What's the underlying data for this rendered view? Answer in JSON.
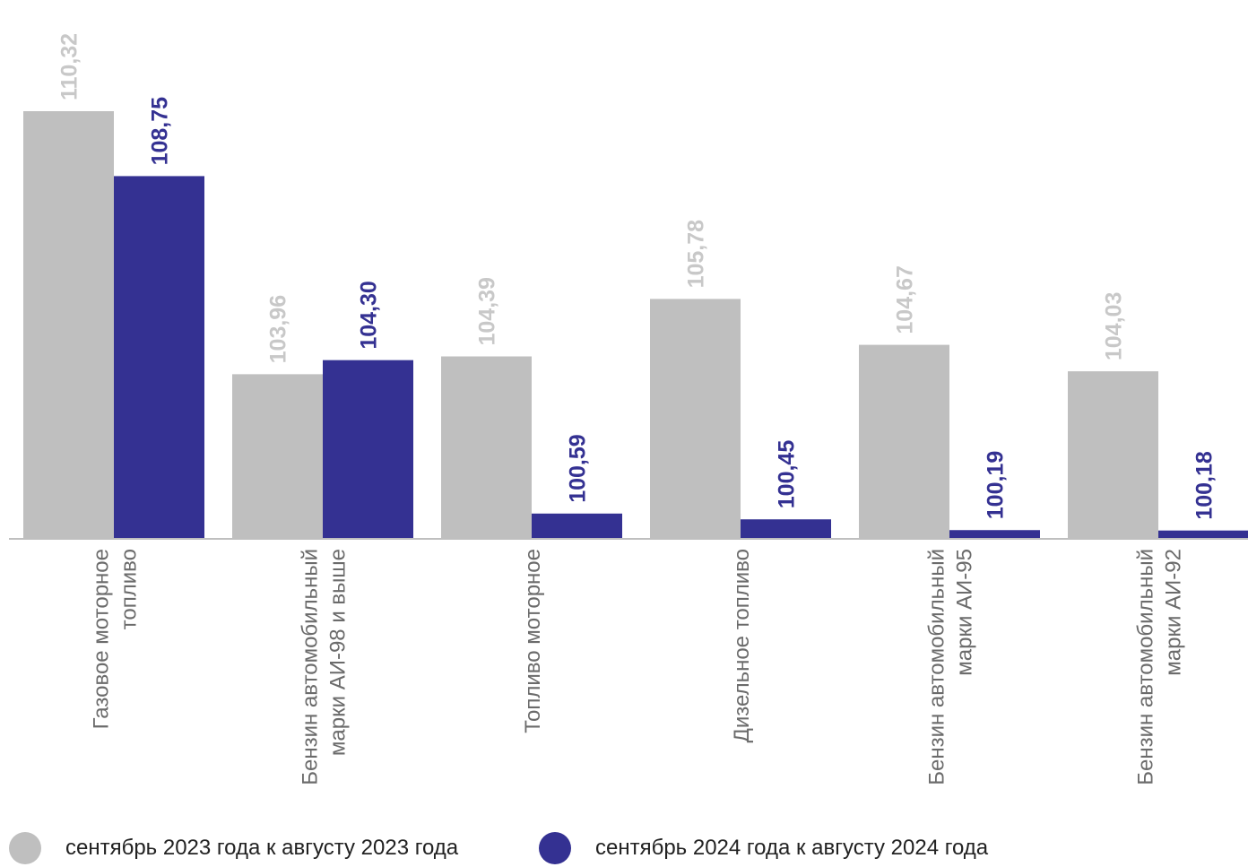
{
  "chart_data": {
    "type": "bar",
    "categories": [
      [
        "Газовое моторное",
        "топливо"
      ],
      [
        "Бензин автомобильный",
        "марки АИ-98 и выше"
      ],
      [
        "Топливо моторное"
      ],
      [
        "Дизельное топливо"
      ],
      [
        "Бензин автомобильный",
        "марки АИ-95"
      ],
      [
        "Бензин автомобильный",
        "марки АИ-92"
      ]
    ],
    "series": [
      {
        "name": "сентябрь 2023 года к августу 2023 года",
        "color": "#bfbfbf",
        "label_color": "#c8c8c8",
        "values": [
          110.32,
          103.96,
          104.39,
          105.78,
          104.67,
          104.03
        ],
        "labels": [
          "110,32",
          "103,96",
          "104,39",
          "105,78",
          "104,67",
          "104,03"
        ]
      },
      {
        "name": "сентябрь 2024 года к августу 2024 года",
        "color": "#343192",
        "label_color": "#343192",
        "values": [
          108.75,
          104.3,
          100.59,
          100.45,
          100.19,
          100.18
        ],
        "labels": [
          "108,75",
          "104,30",
          "100,59",
          "100,45",
          "100,19",
          "100,18"
        ]
      }
    ],
    "ylim": [
      100,
      110.32
    ],
    "legend_position": "bottom"
  }
}
